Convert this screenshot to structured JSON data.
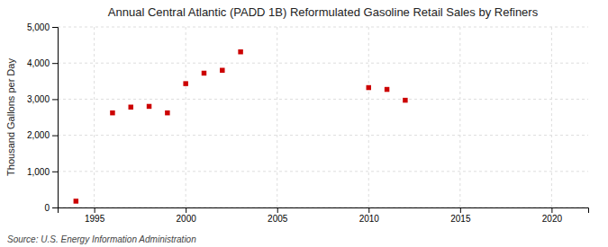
{
  "chart_data": {
    "type": "scatter",
    "title": "Annual Central Atlantic (PADD 1B) Reformulated Gasoline Retail Sales by Refiners",
    "ylabel": "Thousand Gallons per Day",
    "source": "Source: U.S. Energy Information Administration",
    "x": [
      1994,
      1996,
      1997,
      1998,
      1999,
      2000,
      2001,
      2002,
      2003,
      2010,
      2011,
      2012
    ],
    "values": [
      175,
      2620,
      2780,
      2800,
      2620,
      3430,
      3720,
      3800,
      4310,
      3320,
      3270,
      2970
    ],
    "color": "#cc0000",
    "marker": "square",
    "xlim": [
      1993,
      2022
    ],
    "xticks": [
      1995,
      2000,
      2005,
      2010,
      2015,
      2020
    ],
    "ylim": [
      0,
      5000
    ],
    "yticks": [
      0,
      {
        "value": 1000,
        "label": "1,000"
      },
      {
        "value": 2000,
        "label": "2,000"
      },
      {
        "value": 3000,
        "label": "3,000"
      },
      {
        "value": 4000,
        "label": "4,000"
      },
      {
        "value": 5000,
        "label": "5,000"
      }
    ],
    "grid": true
  }
}
